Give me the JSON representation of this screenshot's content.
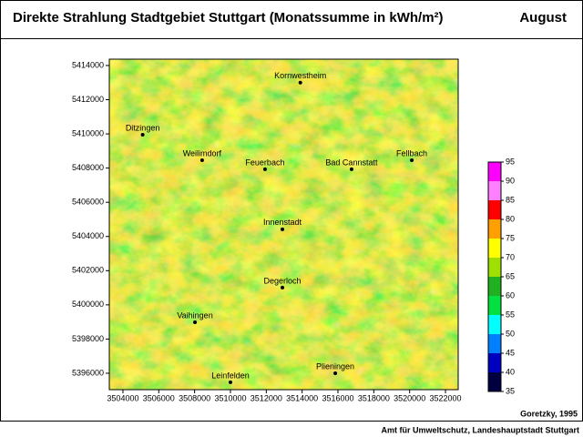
{
  "header": {
    "title": "Direkte Strahlung Stadtgebiet Stuttgart (Monatssumme in kWh/m²)",
    "month": "August"
  },
  "map": {
    "xlim": [
      3503240,
      3522710
    ],
    "ylim": [
      5395040,
      5414370
    ],
    "xticks": [
      3504000,
      3506000,
      3508000,
      3510000,
      3512000,
      3514000,
      3516000,
      3518000,
      3520000,
      3522000
    ],
    "yticks": [
      5396000,
      5398000,
      5400000,
      5402000,
      5404000,
      5406000,
      5408000,
      5410000,
      5412000,
      5414000
    ],
    "places": [
      {
        "name": "Kornwestheim",
        "x": 3513900,
        "y": 5413000
      },
      {
        "name": "Ditzingen",
        "x": 3505100,
        "y": 5409950
      },
      {
        "name": "Weilimdorf",
        "x": 3508420,
        "y": 5408460
      },
      {
        "name": "Feuerbach",
        "x": 3511930,
        "y": 5407930
      },
      {
        "name": "Bad Cannstatt",
        "x": 3516760,
        "y": 5407930
      },
      {
        "name": "Fellbach",
        "x": 3520120,
        "y": 5408460
      },
      {
        "name": "Innenstadt",
        "x": 3512900,
        "y": 5404420
      },
      {
        "name": "Degerloch",
        "x": 3512900,
        "y": 5401010
      },
      {
        "name": "Vaihingen",
        "x": 3508020,
        "y": 5398980
      },
      {
        "name": "Leinfelden",
        "x": 3510000,
        "y": 5395470
      },
      {
        "name": "Plieningen",
        "x": 3515850,
        "y": 5396000
      }
    ]
  },
  "colorbar": {
    "levels": [
      35,
      40,
      45,
      50,
      55,
      60,
      65,
      70,
      75,
      80,
      85,
      90,
      95
    ],
    "colors": [
      "#000040",
      "#0000c0",
      "#0080ff",
      "#00ffff",
      "#00e040",
      "#20b020",
      "#a0e000",
      "#ffff00",
      "#ffa000",
      "#ff0000",
      "#ff80ff",
      "#ff00ff"
    ]
  },
  "footer": {
    "author": "Goretzky, 1995",
    "institution": "Amt für Umweltschutz, Landeshauptstadt Stuttgart"
  }
}
